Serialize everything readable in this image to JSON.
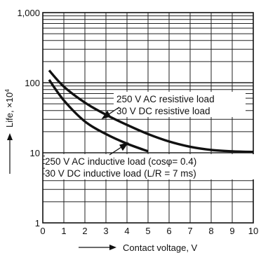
{
  "chart_data": {
    "type": "line",
    "xlabel": "Contact voltage, V",
    "ylabel": "Life, ×10",
    "ylabel_exponent": "4",
    "xlim": [
      0,
      10
    ],
    "ylim": [
      1,
      1000
    ],
    "yscale": "log",
    "grid": true,
    "x_ticks": [
      "0",
      "1",
      "2",
      "3",
      "4",
      "5",
      "6",
      "7",
      "8",
      "9",
      "10"
    ],
    "y_ticks": [
      "1",
      "10",
      "100",
      "1,000"
    ],
    "series": [
      {
        "name": "250 V AC resistive load / 30 V DC resistive load",
        "color": "#111111",
        "x": [
          0.3,
          1,
          2,
          3,
          4,
          5,
          6,
          7,
          8,
          9,
          10
        ],
        "y": [
          150,
          88,
          52,
          35,
          25,
          18.5,
          14.5,
          12.2,
          11.0,
          10.5,
          10.3
        ]
      },
      {
        "name": "250 V AC inductive load (cosφ= 0.4) / 30 V DC  inductive load (L/R = 7 ms)",
        "color": "#111111",
        "x": [
          0.3,
          1,
          2,
          3,
          4,
          5
        ],
        "y": [
          110,
          56,
          28,
          18.5,
          13.5,
          10.5
        ]
      }
    ],
    "annotations": [
      {
        "id": "ann_res_1",
        "text": "250 V AC resistive load"
      },
      {
        "id": "ann_res_2",
        "text": "30 V DC resistive load"
      },
      {
        "id": "ann_ind_1",
        "text": "250 V AC inductive load (cosφ= 0.4)"
      },
      {
        "id": "ann_ind_2",
        "text": "30 V DC  inductive load (L/R = 7 ms)"
      }
    ]
  }
}
